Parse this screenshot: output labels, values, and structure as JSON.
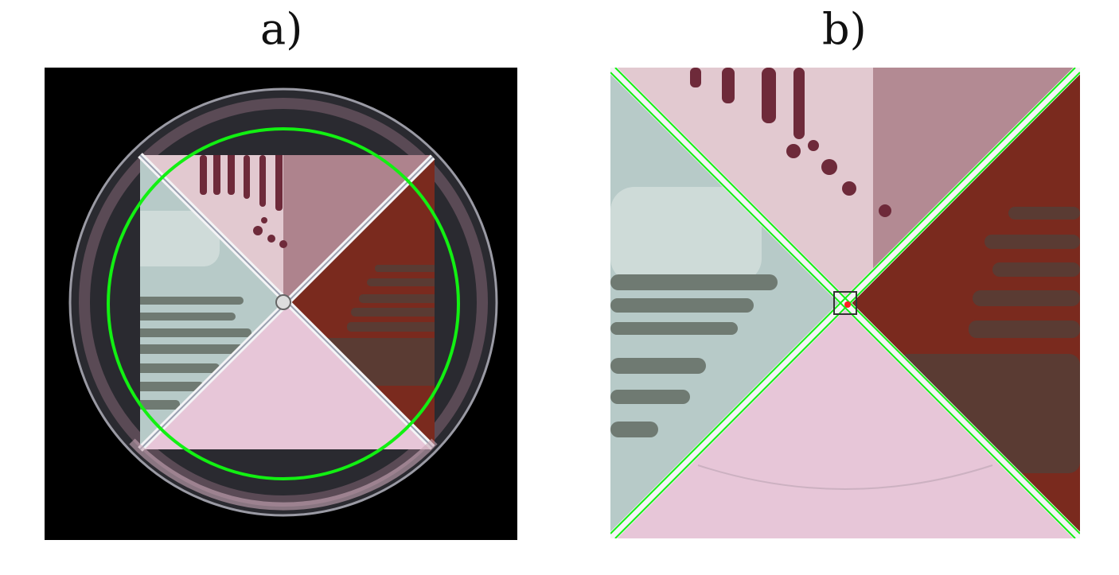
{
  "figure": {
    "panel_a_label": "a)",
    "panel_b_label": "b)"
  },
  "colors": {
    "background": "#000000",
    "overlay_green": "#12f012",
    "red_dot": "#ff2020",
    "dish_rim": "#8e8e98",
    "quadrant_top_media": "#e2c9d0",
    "quadrant_right_media": "#7a2a1e",
    "quadrant_left_media": "#b7cac8",
    "quadrant_bottom_media": "#e7c6d8",
    "colony_dark_red": "#6e2a3a",
    "colony_grey": "#6f7a72",
    "colony_rust": "#5a3b33"
  },
  "icons": {
    "panel_a": "petri-dish-photo-with-fitted-circle",
    "panel_b": "zoomed-quadrant-divider-lines"
  }
}
